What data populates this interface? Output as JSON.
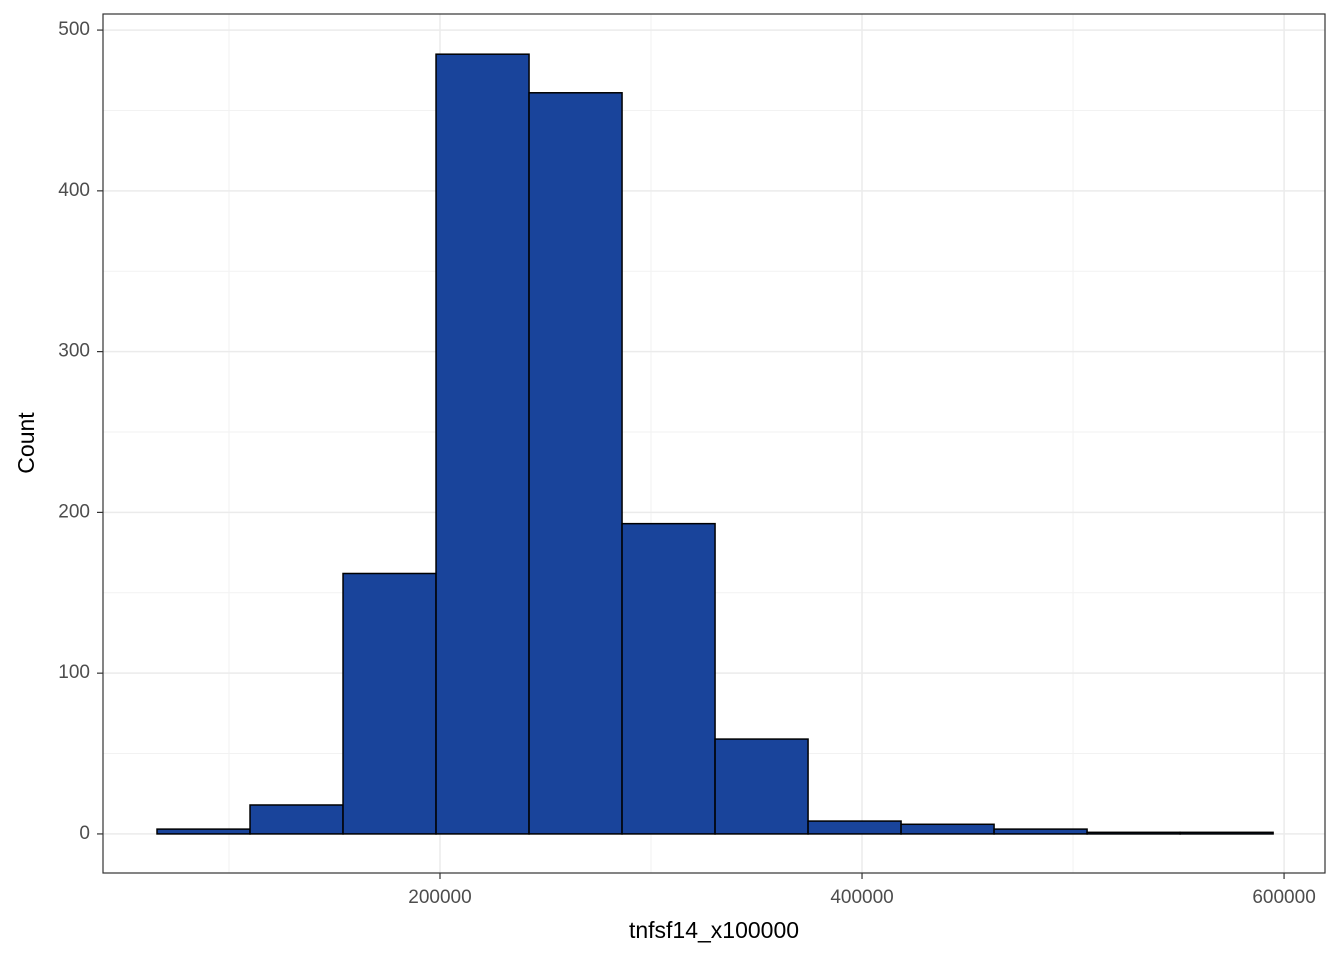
{
  "chart_data": {
    "type": "histogram",
    "x_label": "tnfsf14_x100000",
    "y_label": "Count",
    "bins": [
      65900,
      109975,
      154050,
      198125,
      242200,
      286275,
      330350,
      374425,
      418500,
      462575,
      506650,
      550725,
      594800
    ],
    "values": [
      3,
      18,
      162,
      485,
      461,
      193,
      59,
      8,
      6,
      3,
      1,
      1
    ],
    "color": "#19449b",
    "edge_color": "#000000",
    "xlim": [
      40300,
      619400
    ],
    "xticks": [
      200000,
      400000,
      600000
    ],
    "x_minor_grid": [
      100000,
      300000,
      500000
    ],
    "ylim": [
      -24.3,
      510
    ],
    "yticks": [
      0,
      100,
      200,
      300,
      400,
      500
    ],
    "y_minor_grid": [
      50,
      150,
      250,
      350,
      450
    ],
    "grid": true
  }
}
